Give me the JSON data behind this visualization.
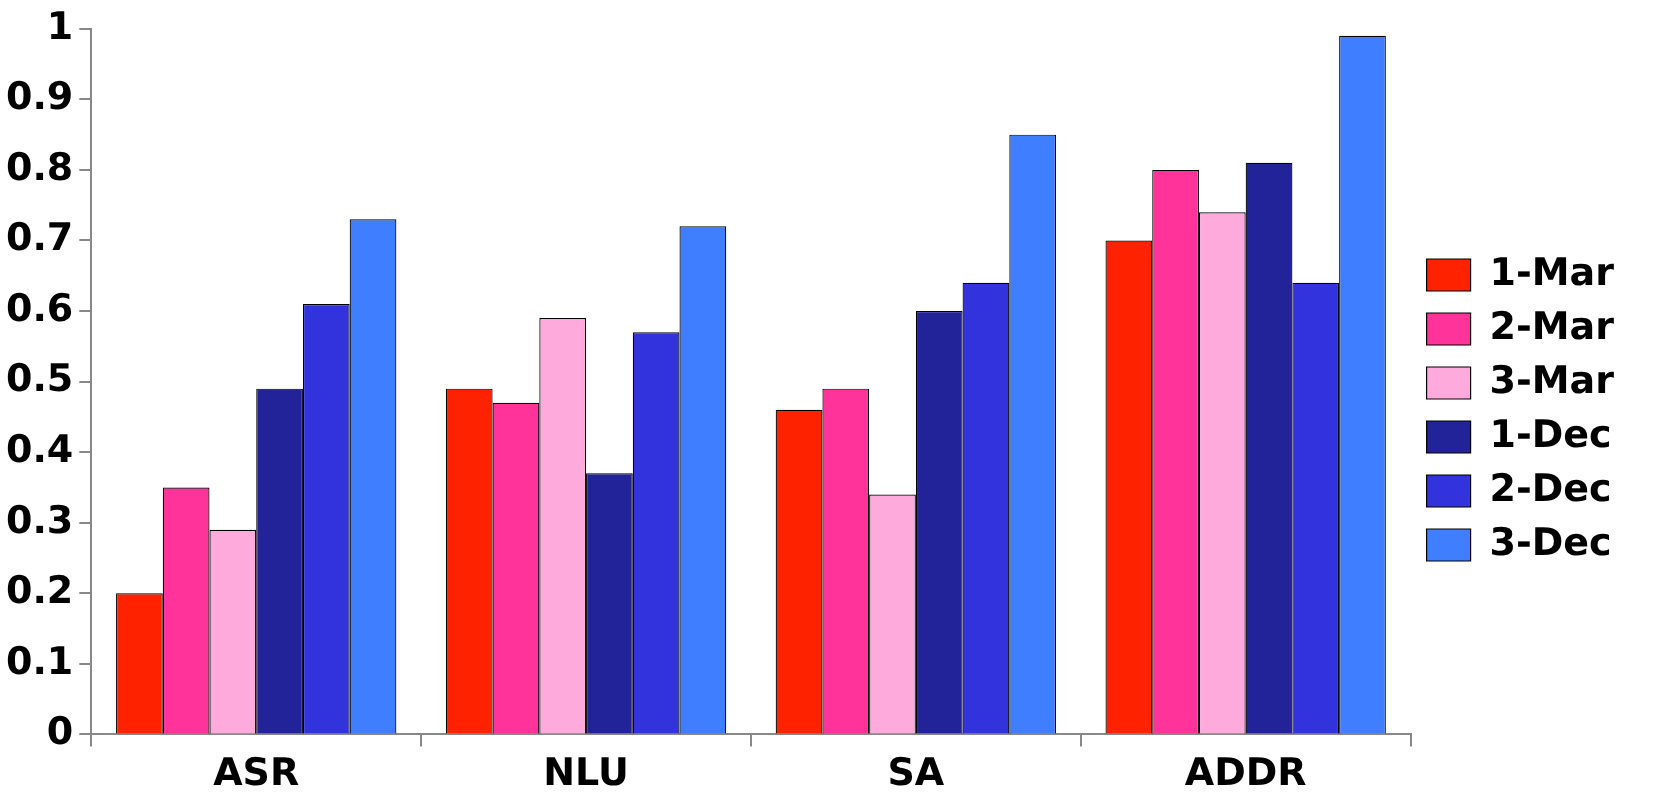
{
  "chart_data": {
    "type": "bar",
    "categories": [
      "ASR",
      "NLU",
      "SA",
      "ADDR"
    ],
    "series": [
      {
        "name": "1-Mar",
        "color": "#ff2200",
        "values": [
          0.2,
          0.49,
          0.46,
          0.7
        ]
      },
      {
        "name": "2-Mar",
        "color": "#ff3399",
        "values": [
          0.35,
          0.47,
          0.49,
          0.8
        ]
      },
      {
        "name": "3-Mar",
        "color": "#ffaadd",
        "values": [
          0.29,
          0.59,
          0.34,
          0.74
        ]
      },
      {
        "name": "1-Dec",
        "color": "#222299",
        "values": [
          0.49,
          0.37,
          0.6,
          0.81
        ]
      },
      {
        "name": "2-Dec",
        "color": "#3333dd",
        "values": [
          0.61,
          0.57,
          0.64,
          0.64
        ]
      },
      {
        "name": "3-Dec",
        "color": "#3f7fff",
        "values": [
          0.73,
          0.72,
          0.85,
          0.99
        ]
      }
    ],
    "ylim": [
      0,
      1
    ],
    "yticks": [
      0,
      0.1,
      0.2,
      0.3,
      0.4,
      0.5,
      0.6,
      0.7,
      0.8,
      0.9,
      1
    ],
    "grid": false,
    "legend": "right"
  }
}
